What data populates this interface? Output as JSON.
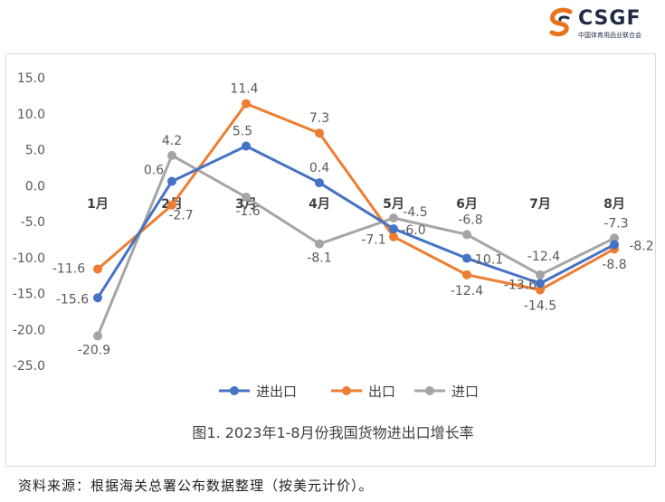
{
  "logo": {
    "text": "CSGF",
    "subtitle": "中国体育用品业联合会"
  },
  "colors": {
    "import_export": "#4472c4",
    "export": "#ed7d31",
    "import": "#a5a5a5",
    "axis_text": "#595959",
    "grid": "#d9d9d9",
    "logo_orange": "#e8731c",
    "logo_navy": "#1f2a44"
  },
  "chart_data": {
    "type": "line",
    "title": "图1. 2023年1-8月份我国货物进出口增长率",
    "categories": [
      "1月",
      "2月",
      "3月",
      "4月",
      "5月",
      "6月",
      "7月",
      "8月"
    ],
    "series": [
      {
        "name": "进出口",
        "color": "#4472c4",
        "values": [
          -15.6,
          0.6,
          5.5,
          0.4,
          -6.0,
          -10.1,
          -13.6,
          -8.2
        ]
      },
      {
        "name": "出口",
        "color": "#ed7d31",
        "values": [
          -11.6,
          -2.7,
          11.4,
          7.3,
          -7.1,
          -12.4,
          -14.5,
          -8.8
        ]
      },
      {
        "name": "进口",
        "color": "#a5a5a5",
        "values": [
          -20.9,
          4.2,
          -1.6,
          -8.1,
          -4.5,
          -6.8,
          -12.4,
          -7.3
        ]
      }
    ],
    "value_labels": {
      "进出口": [
        "-15.6",
        "0.6",
        "5.5",
        "0.4",
        "-6.0",
        "-10.1",
        "-13.6",
        "-8.2"
      ],
      "出口": [
        "-11.6",
        "-2.7",
        "11.4",
        "7.3",
        "-7.1",
        "-12.4",
        "-14.5",
        "-8.8"
      ],
      "进口": [
        "-20.9",
        "4.2",
        "-1.6",
        "-8.1",
        "-4.5",
        "-6.8",
        "-12.4",
        "-7.3"
      ]
    },
    "yticks": [
      "15.0",
      "10.0",
      "5.0",
      "0.0",
      "-5.0",
      "-10.0",
      "-15.0",
      "-20.0",
      "-25.0"
    ],
    "ylim": [
      -25,
      15
    ],
    "grid": true,
    "legend": "bottom",
    "category_labels_position": "above-axis-near-zero"
  },
  "footer": {
    "source": "资料来源：根据海关总署公布数据整理（按美元计价）。"
  }
}
